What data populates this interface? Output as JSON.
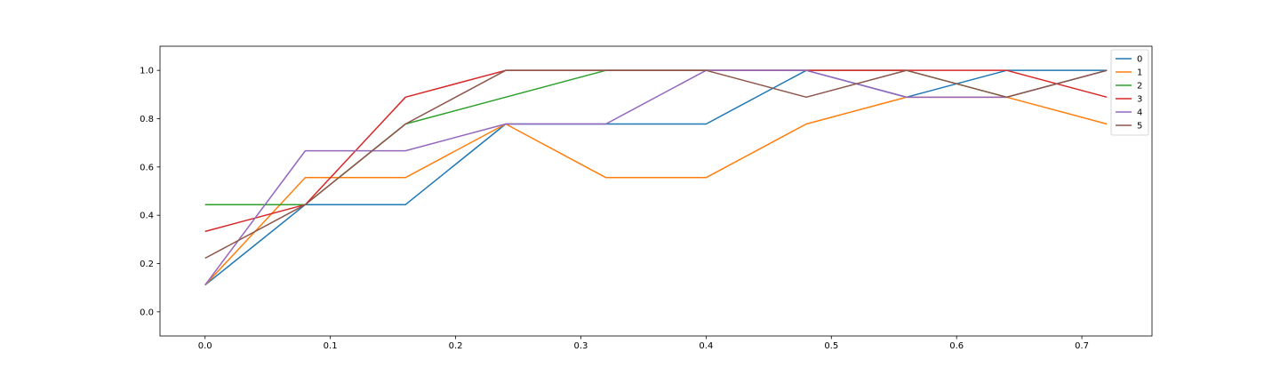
{
  "chart_data": {
    "type": "line",
    "title": "",
    "xlabel": "",
    "ylabel": "",
    "xlim": [
      -0.036,
      0.756
    ],
    "ylim": [
      -0.1,
      1.1
    ],
    "x_ticks": [
      0.0,
      0.1,
      0.2,
      0.3,
      0.4,
      0.5,
      0.6,
      0.7
    ],
    "x_tick_labels": [
      "0.0",
      "0.1",
      "0.2",
      "0.3",
      "0.4",
      "0.5",
      "0.6",
      "0.7"
    ],
    "y_ticks": [
      0.0,
      0.2,
      0.4,
      0.6,
      0.8,
      1.0
    ],
    "y_tick_labels": [
      "0.0",
      "0.2",
      "0.4",
      "0.6",
      "0.8",
      "1.0"
    ],
    "grid": false,
    "legend_position": "top-right",
    "x": [
      0.0,
      0.08,
      0.16,
      0.24,
      0.32,
      0.4,
      0.48,
      0.56,
      0.64,
      0.72
    ],
    "series": [
      {
        "name": "0",
        "color": "#1f77b4",
        "values": [
          0.111,
          0.444,
          0.444,
          0.778,
          0.778,
          0.778,
          1.0,
          0.889,
          1.0,
          1.0
        ]
      },
      {
        "name": "1",
        "color": "#ff7f0e",
        "values": [
          0.111,
          0.556,
          0.556,
          0.778,
          0.556,
          0.556,
          0.778,
          0.889,
          0.889,
          0.778
        ]
      },
      {
        "name": "2",
        "color": "#2ca02c",
        "values": [
          0.444,
          0.444,
          0.778,
          0.889,
          1.0,
          1.0,
          1.0,
          1.0,
          0.889,
          1.0
        ]
      },
      {
        "name": "3",
        "color": "#d62728",
        "values": [
          0.333,
          0.444,
          0.889,
          1.0,
          1.0,
          1.0,
          1.0,
          1.0,
          1.0,
          0.889
        ]
      },
      {
        "name": "4",
        "color": "#9467bd",
        "values": [
          0.111,
          0.667,
          0.667,
          0.778,
          0.778,
          1.0,
          1.0,
          0.889,
          0.889,
          1.0
        ]
      },
      {
        "name": "5",
        "color": "#8c564b",
        "values": [
          0.222,
          0.444,
          0.778,
          1.0,
          1.0,
          1.0,
          0.889,
          1.0,
          0.889,
          1.0
        ]
      }
    ]
  }
}
